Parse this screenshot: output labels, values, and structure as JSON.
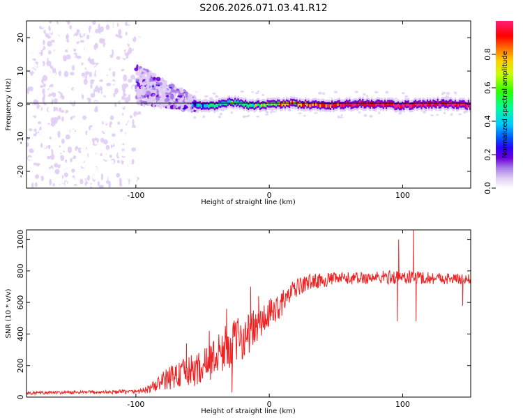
{
  "figure_title": "S206.2026.071.03.41.R12",
  "colors": {
    "snr_line": "#ee2222",
    "spectrogram_background": "#ffffff",
    "centerline": "#000000",
    "colormap": [
      "#ffffff",
      "#e0cdf5",
      "#a77ce8",
      "#6a00d8",
      "#0000ff",
      "#00c8ff",
      "#00ff80",
      "#ffd000",
      "#ff0000",
      "#ff1e78"
    ]
  },
  "chart_data": [
    {
      "type": "heatmap",
      "panel": "spectrogram",
      "title": "",
      "xlabel": "Height of straight line (km)",
      "ylabel": "Frequency (Hz)",
      "xlim": [
        -182,
        151
      ],
      "ylim": [
        -25,
        25
      ],
      "xticks": [
        -100,
        0,
        100
      ],
      "xtick_labels": [
        "-100",
        "0",
        "100"
      ],
      "yticks": [
        -20,
        -10,
        0,
        10,
        20
      ],
      "ytick_labels": [
        "-20",
        "-10",
        "0",
        "10",
        "20"
      ],
      "grid": false,
      "colorbar": {
        "label": "Normalized spectral amplitude",
        "range": [
          0.0,
          1.0
        ],
        "ticks": [
          0.0,
          0.2,
          0.4,
          0.6,
          0.8
        ],
        "tick_labels": [
          "0.0",
          "0.2",
          "0.4",
          "0.6",
          "0.8"
        ]
      },
      "regions": [
        {
          "x_range": [
            -182,
            -100
          ],
          "freq_range": [
            -25,
            25
          ],
          "amplitude": "0.05-0.15",
          "pattern": "scattered noise"
        },
        {
          "x_range": [
            -100,
            -60
          ],
          "freq_center_start": 6,
          "freq_center_end": 0,
          "amplitude": "0.15-0.3",
          "pattern": "converging band"
        },
        {
          "x_range": [
            -60,
            151
          ],
          "freq_center": 0,
          "amplitude": "0.3-1.0",
          "pattern": "narrow line near 0 Hz"
        }
      ]
    },
    {
      "type": "line",
      "panel": "snr",
      "title": "",
      "xlabel": "Height of straight line (km)",
      "ylabel": "SNR (10 * v/v)",
      "xlim": [
        -182,
        151
      ],
      "ylim": [
        0,
        1060
      ],
      "xticks": [
        -100,
        0,
        100
      ],
      "xtick_labels": [
        "-100",
        "0",
        "100"
      ],
      "yticks": [
        0,
        200,
        400,
        600,
        800,
        1000
      ],
      "ytick_labels": [
        "0",
        "200",
        "400",
        "600",
        "800",
        "1000"
      ],
      "grid": false,
      "series": [
        {
          "name": "SNR",
          "x": [
            -182,
            -160,
            -140,
            -120,
            -100,
            -90,
            -80,
            -70,
            -60,
            -50,
            -40,
            -30,
            -20,
            -10,
            0,
            10,
            20,
            30,
            50,
            70,
            90,
            100,
            110,
            120,
            140,
            151
          ],
          "values": [
            25,
            28,
            30,
            32,
            35,
            50,
            100,
            140,
            160,
            190,
            260,
            330,
            380,
            440,
            520,
            600,
            690,
            730,
            750,
            755,
            760,
            760,
            760,
            755,
            750,
            745
          ],
          "noise_amplitude": [
            10,
            10,
            10,
            12,
            14,
            25,
            60,
            90,
            100,
            110,
            130,
            150,
            140,
            120,
            100,
            80,
            60,
            50,
            40,
            40,
            45,
            45,
            45,
            40,
            35,
            35
          ],
          "spikes": [
            {
              "x": -75,
              "value": 170
            },
            {
              "x": -62,
              "value": 340
            },
            {
              "x": -45,
              "value": 420
            },
            {
              "x": -32,
              "value": 560
            },
            {
              "x": -28,
              "value": 30
            },
            {
              "x": -14,
              "value": 700
            },
            {
              "x": -8,
              "value": 640
            },
            {
              "x": 97,
              "value": 1000
            },
            {
              "x": 96,
              "value": 480
            },
            {
              "x": 108,
              "value": 1060
            },
            {
              "x": 110,
              "value": 480
            },
            {
              "x": 145,
              "value": 580
            }
          ]
        }
      ]
    }
  ]
}
